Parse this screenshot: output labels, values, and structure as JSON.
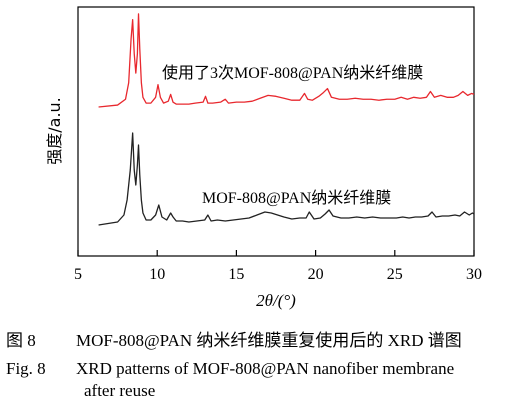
{
  "chart_data": {
    "type": "line",
    "xlabel": "2θ/(°)",
    "ylabel": "强度/a.u.",
    "xlim": [
      5,
      30
    ],
    "xticks": [
      5,
      10,
      15,
      20,
      25,
      30
    ],
    "y_ticks_shown": false,
    "grid": false,
    "series": [
      {
        "name": "使用了3次MOF-808@PAN纳米纤维膜",
        "color": "#e8282e",
        "annotation": "使用了3次MOF-808@PAN纳米纤维膜",
        "x": [
          6.3,
          7.5,
          8.0,
          8.2,
          8.35,
          8.45,
          8.55,
          8.65,
          8.75,
          8.82,
          8.9,
          9.0,
          9.1,
          9.3,
          9.6,
          9.9,
          10.05,
          10.2,
          10.4,
          10.7,
          10.85,
          11.0,
          11.2,
          11.6,
          12.0,
          12.4,
          12.9,
          13.05,
          13.2,
          13.5,
          14.0,
          14.3,
          14.5,
          15.0,
          15.5,
          16.0,
          16.5,
          17.0,
          17.5,
          18.0,
          18.5,
          19.0,
          19.3,
          19.5,
          19.8,
          20.2,
          20.5,
          20.75,
          21.0,
          21.5,
          22.0,
          22.5,
          23.0,
          23.5,
          24.0,
          24.5,
          25.0,
          25.4,
          25.8,
          26.2,
          26.6,
          27.0,
          27.25,
          27.5,
          27.9,
          28.3,
          28.7,
          29.0,
          29.3,
          29.6,
          29.85,
          30.0
        ],
        "y": [
          0.0,
          0.02,
          0.08,
          0.25,
          0.7,
          0.9,
          0.55,
          0.35,
          0.55,
          0.96,
          0.6,
          0.25,
          0.1,
          0.04,
          0.04,
          0.1,
          0.23,
          0.1,
          0.04,
          0.06,
          0.13,
          0.05,
          0.03,
          0.03,
          0.03,
          0.04,
          0.05,
          0.11,
          0.04,
          0.04,
          0.05,
          0.08,
          0.04,
          0.05,
          0.05,
          0.06,
          0.09,
          0.12,
          0.11,
          0.09,
          0.07,
          0.07,
          0.14,
          0.08,
          0.07,
          0.11,
          0.15,
          0.19,
          0.1,
          0.08,
          0.08,
          0.09,
          0.08,
          0.08,
          0.07,
          0.08,
          0.08,
          0.1,
          0.08,
          0.1,
          0.09,
          0.1,
          0.16,
          0.1,
          0.12,
          0.1,
          0.1,
          0.12,
          0.16,
          0.12,
          0.14,
          0.13
        ]
      },
      {
        "name": "MOF-808@PAN纳米纤维膜",
        "color": "#222222",
        "annotation": "MOF-808@PAN纳米纤维膜",
        "x": [
          6.3,
          7.5,
          7.9,
          8.1,
          8.3,
          8.45,
          8.55,
          8.65,
          8.75,
          8.82,
          8.9,
          9.0,
          9.1,
          9.3,
          9.6,
          9.9,
          10.1,
          10.3,
          10.6,
          10.85,
          11.0,
          11.2,
          11.6,
          12.0,
          12.5,
          13.0,
          13.2,
          13.4,
          13.8,
          14.3,
          14.8,
          15.3,
          15.8,
          16.3,
          16.8,
          17.2,
          17.6,
          18.0,
          18.5,
          19.0,
          19.4,
          19.6,
          19.9,
          20.3,
          20.6,
          20.85,
          21.1,
          21.6,
          22.1,
          22.6,
          23.1,
          23.6,
          24.1,
          24.6,
          25.1,
          25.5,
          25.9,
          26.3,
          26.7,
          27.1,
          27.35,
          27.6,
          28.0,
          28.4,
          28.8,
          29.1,
          29.4,
          29.7,
          29.9,
          30.0
        ],
        "y": [
          0.0,
          0.03,
          0.1,
          0.25,
          0.55,
          0.92,
          0.55,
          0.4,
          0.6,
          0.8,
          0.5,
          0.25,
          0.12,
          0.05,
          0.05,
          0.1,
          0.2,
          0.08,
          0.05,
          0.12,
          0.08,
          0.04,
          0.04,
          0.03,
          0.04,
          0.05,
          0.1,
          0.04,
          0.05,
          0.04,
          0.05,
          0.06,
          0.07,
          0.1,
          0.13,
          0.12,
          0.1,
          0.08,
          0.06,
          0.07,
          0.07,
          0.13,
          0.06,
          0.07,
          0.11,
          0.15,
          0.09,
          0.07,
          0.07,
          0.08,
          0.07,
          0.08,
          0.07,
          0.07,
          0.07,
          0.08,
          0.07,
          0.08,
          0.08,
          0.09,
          0.13,
          0.08,
          0.09,
          0.09,
          0.1,
          0.09,
          0.13,
          0.1,
          0.12,
          0.11
        ]
      }
    ]
  },
  "caption": {
    "zh_label": "图 8",
    "zh_text": "MOF-808@PAN 纳米纤维膜重复使用后的 XRD 谱图",
    "en_label": "Fig. 8",
    "en_text": "XRD patterns of MOF-808@PAN nanofiber membrane",
    "en_text_line2": "after reuse"
  }
}
